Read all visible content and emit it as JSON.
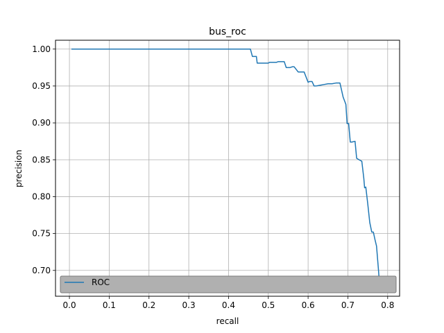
{
  "chart_data": {
    "type": "line",
    "title": "bus_roc",
    "xlabel": "recall",
    "ylabel": "precision",
    "xlim": [
      -0.035,
      0.83
    ],
    "ylim": [
      0.665,
      1.012
    ],
    "xticks": [
      0.0,
      0.1,
      0.2,
      0.3,
      0.4,
      0.5,
      0.6,
      0.7,
      0.8
    ],
    "xtick_labels": [
      "0.0",
      "0.1",
      "0.2",
      "0.3",
      "0.4",
      "0.5",
      "0.6",
      "0.7",
      "0.8"
    ],
    "yticks": [
      0.7,
      0.75,
      0.8,
      0.85,
      0.9,
      0.95,
      1.0
    ],
    "ytick_labels": [
      "0.70",
      "0.75",
      "0.80",
      "0.85",
      "0.90",
      "0.95",
      "1.00"
    ],
    "grid": true,
    "legend_position": "lower-left",
    "series": [
      {
        "name": "ROC",
        "color": "#1f77b4",
        "x": [
          0.005,
          0.1,
          0.2,
          0.3,
          0.4,
          0.455,
          0.46,
          0.47,
          0.472,
          0.48,
          0.5,
          0.503,
          0.52,
          0.525,
          0.54,
          0.545,
          0.555,
          0.56,
          0.565,
          0.575,
          0.578,
          0.59,
          0.6,
          0.603,
          0.61,
          0.615,
          0.62,
          0.63,
          0.64,
          0.65,
          0.66,
          0.67,
          0.68,
          0.683,
          0.688,
          0.695,
          0.698,
          0.702,
          0.706,
          0.71,
          0.718,
          0.722,
          0.728,
          0.735,
          0.74,
          0.742,
          0.745,
          0.75,
          0.755,
          0.76,
          0.764,
          0.768,
          0.772,
          0.777,
          0.78,
          0.785,
          0.79
        ],
        "y": [
          1.0,
          1.0,
          1.0,
          1.0,
          1.0,
          1.0,
          0.99,
          0.99,
          0.981,
          0.981,
          0.981,
          0.982,
          0.982,
          0.983,
          0.983,
          0.975,
          0.975,
          0.976,
          0.976,
          0.969,
          0.969,
          0.969,
          0.955,
          0.956,
          0.956,
          0.95,
          0.95,
          0.951,
          0.952,
          0.953,
          0.953,
          0.954,
          0.954,
          0.947,
          0.935,
          0.925,
          0.899,
          0.899,
          0.874,
          0.874,
          0.875,
          0.852,
          0.85,
          0.848,
          0.825,
          0.812,
          0.813,
          0.79,
          0.765,
          0.752,
          0.752,
          0.742,
          0.733,
          0.7,
          0.678,
          0.679,
          0.68
        ]
      }
    ]
  }
}
